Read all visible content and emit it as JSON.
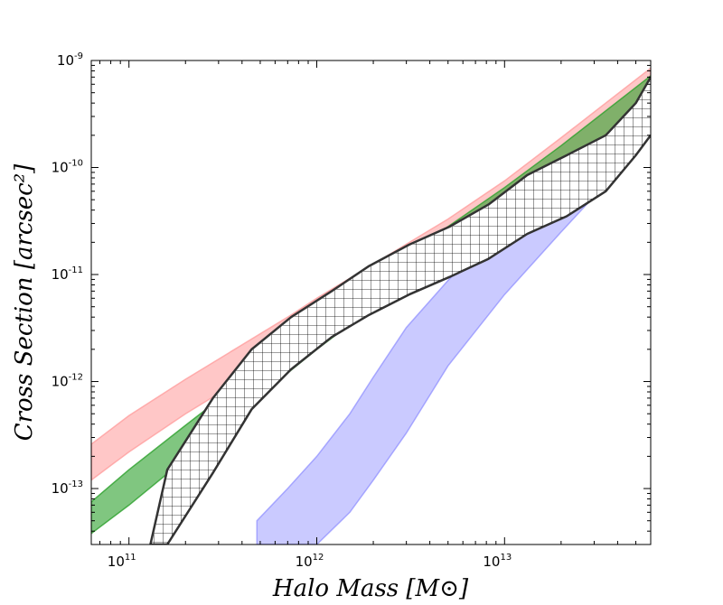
{
  "chart_data": {
    "type": "area",
    "title": "",
    "xlabel": "Halo Mass [M⊙]",
    "ylabel": "Cross Section [arcsec²]",
    "xscale": "log",
    "yscale": "log",
    "xlim": [
      63000000000.0,
      60000000000000.0
    ],
    "ylim": [
      3e-14,
      1e-09
    ],
    "x_ticks": [
      {
        "value": 100000000000.0,
        "base": "10",
        "exp": "11"
      },
      {
        "value": 1000000000000.0,
        "base": "10",
        "exp": "12"
      },
      {
        "value": 10000000000000.0,
        "base": "10",
        "exp": "13"
      }
    ],
    "y_ticks": [
      {
        "value": 1e-13,
        "base": "10",
        "exp": "-13"
      },
      {
        "value": 1e-12,
        "base": "10",
        "exp": "-12"
      },
      {
        "value": 1e-11,
        "base": "10",
        "exp": "-11"
      },
      {
        "value": 1e-10,
        "base": "10",
        "exp": "-10"
      },
      {
        "value": 1e-09,
        "base": "10",
        "exp": "-9"
      }
    ],
    "series": [
      {
        "name": "red-band",
        "style": "filled",
        "color": "#ff9999",
        "opacity": 0.55,
        "x": [
          63000000000.0,
          100000000000.0,
          200000000000.0,
          400000000000.0,
          700000000000.0,
          1000000000000.0,
          2000000000000.0,
          5000000000000.0,
          10000000000000.0,
          20000000000000.0,
          60000000000000.0
        ],
        "upper": [
          2.6e-13,
          4.8e-13,
          1.05e-12,
          2.2e-12,
          4e-12,
          6e-12,
          1.25e-11,
          3.3e-11,
          7.5e-11,
          1.9e-10,
          8.5e-10
        ],
        "lower": [
          1.2e-13,
          2.2e-13,
          5e-13,
          1.05e-12,
          2e-12,
          2.9e-12,
          6.2e-12,
          1.75e-11,
          4e-11,
          1e-10,
          4.2e-10
        ]
      },
      {
        "name": "green-band",
        "style": "filled",
        "color": "#2ca02c",
        "opacity": 0.6,
        "x": [
          63000000000.0,
          100000000000.0,
          200000000000.0,
          400000000000.0,
          700000000000.0,
          1000000000000.0,
          2000000000000.0,
          5000000000000.0,
          10000000000000.0,
          20000000000000.0,
          60000000000000.0
        ],
        "upper": [
          7.5e-14,
          1.5e-13,
          3.9e-13,
          1e-12,
          2.2e-12,
          3.6e-12,
          9e-12,
          2.8e-11,
          6.5e-11,
          1.6e-10,
          7.2e-10
        ],
        "lower": [
          3.8e-14,
          7e-14,
          1.9e-13,
          5.2e-13,
          1.2e-12,
          2e-12,
          5e-12,
          1.6e-11,
          3.7e-11,
          9.5e-11,
          4.2e-10
        ]
      },
      {
        "name": "blue-band",
        "style": "filled",
        "color": "#8080ff",
        "opacity": 0.42,
        "x": [
          480000000000.0,
          700000000000.0,
          1000000000000.0,
          1500000000000.0,
          2000000000000.0,
          3000000000000.0,
          5000000000000.0,
          10000000000000.0,
          20000000000000.0,
          60000000000000.0
        ],
        "upper": [
          5e-14,
          1e-13,
          2e-13,
          5e-13,
          1.1e-12,
          3.2e-12,
          8.8e-12,
          3.2e-11,
          9e-11,
          4.2e-10
        ],
        "lower": [
          3e-14,
          3e-14,
          3e-14,
          6e-14,
          1.2e-13,
          3.3e-13,
          1.4e-12,
          6.5e-12,
          2.5e-11,
          2e-10
        ]
      },
      {
        "name": "hatched-band",
        "style": "hatched",
        "color": "#333333",
        "x": [
          130000000000.0,
          160000000000.0,
          280000000000.0,
          450000000000.0,
          730000000000.0,
          1200000000000.0,
          1900000000000.0,
          3100000000000.0,
          5100000000000.0,
          8200000000000.0,
          13200000000000.0,
          21400000000000.0,
          34600000000000.0,
          50000000000000.0,
          60000000000000.0
        ],
        "upper": [
          3e-14,
          1.5e-13,
          7e-13,
          2e-12,
          4e-12,
          7e-12,
          1.2e-11,
          1.9e-11,
          2.8e-11,
          4.5e-11,
          8.5e-11,
          1.3e-10,
          2e-10,
          4e-10,
          7e-10
        ],
        "lower": [
          3e-14,
          3e-14,
          1.4e-13,
          5.5e-13,
          1.3e-12,
          2.6e-12,
          4.2e-12,
          6.5e-12,
          9.5e-12,
          1.4e-11,
          2.4e-11,
          3.5e-11,
          6e-11,
          1.3e-10,
          2e-10
        ]
      }
    ]
  }
}
